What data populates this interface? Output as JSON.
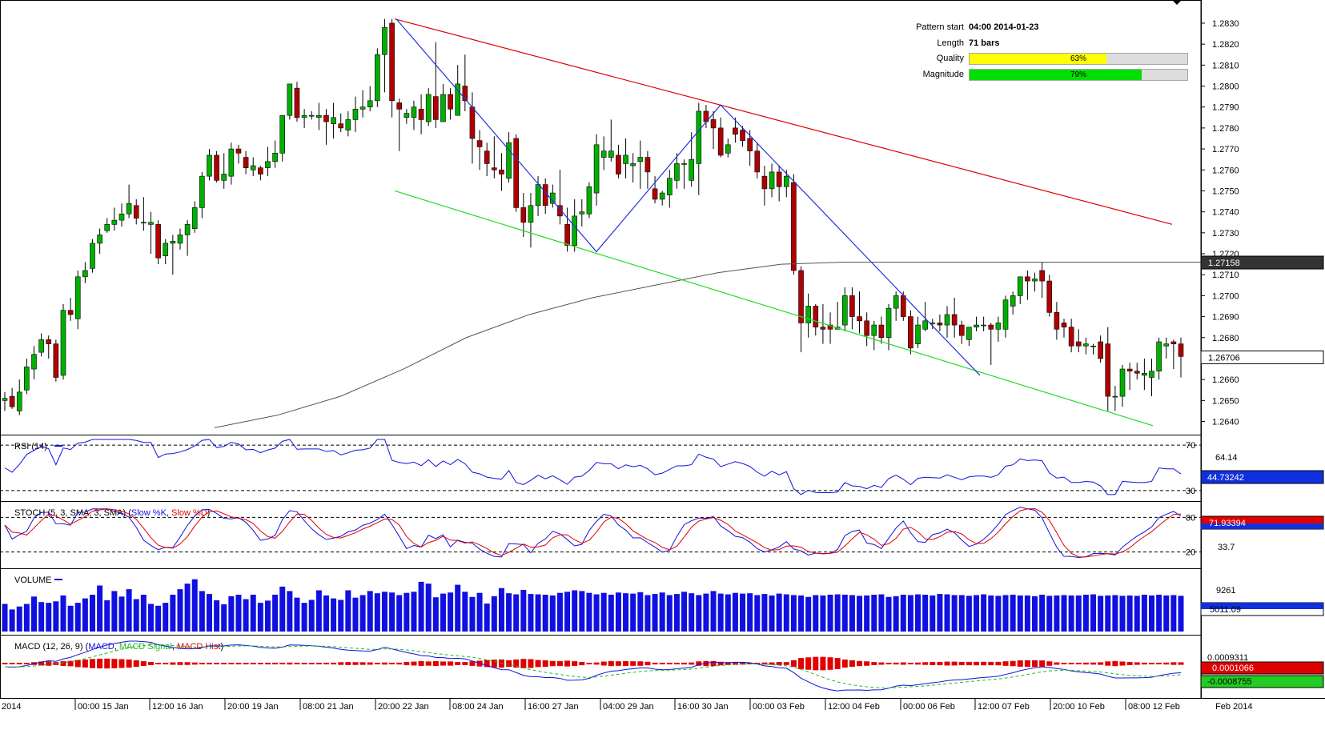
{
  "pattern_info": {
    "rows": [
      {
        "label": "Pattern start",
        "value": "04:00 2014-01-23"
      },
      {
        "label": "Length",
        "value": "71 bars"
      }
    ],
    "quality": {
      "label": "Quality",
      "percent": 63,
      "text": "63%",
      "color": "#ffff00"
    },
    "magnitude": {
      "label": "Magnitude",
      "percent": 79,
      "text": "79%",
      "color": "#00e000"
    }
  },
  "colors": {
    "up": "#00b000",
    "down": "#b00000",
    "resistance": "#e00000",
    "support": "#22dd22",
    "zigzag": "#2233dd",
    "ma": "#555555",
    "volume": "#1010e0"
  },
  "price_axis": {
    "ticks": [
      "1.2830",
      "1.2820",
      "1.2810",
      "1.2800",
      "1.2790",
      "1.2780",
      "1.2770",
      "1.2760",
      "1.2750",
      "1.2740",
      "1.2730",
      "1.2720",
      "1.2710",
      "1.2700",
      "1.2690",
      "1.2680",
      "1.2670",
      "1.2660",
      "1.2650",
      "1.2640"
    ],
    "badge_ma": "1.27158",
    "badge_last": "1.26706"
  },
  "x_axis": {
    "left_label": "2014",
    "right_label": "Feb 2014",
    "labels": [
      "00:00 15 Jan",
      "12:00 16 Jan",
      "20:00 19 Jan",
      "08:00 21 Jan",
      "20:00 22 Jan",
      "08:00 24 Jan",
      "16:00 27 Jan",
      "04:00 29 Jan",
      "16:00 30 Jan",
      "00:00 03 Feb",
      "12:00 04 Feb",
      "00:00 06 Feb",
      "12:00 07 Feb",
      "20:00 10 Feb",
      "08:00 12 Feb"
    ]
  },
  "rsi": {
    "title": "RSI (14)",
    "level_high": "70",
    "level_low": "30",
    "mid_label": "64.14",
    "badge": "44.73242"
  },
  "stoch": {
    "title_prefix": "STOCH (5, 3, SMA, 3, SMA)",
    "k_label": "Slow %K",
    "d_label": "Slow %D",
    "level_high": "80",
    "level_low": "20",
    "mid_label": "33.7",
    "badge": "71.93394"
  },
  "volume": {
    "title": "VOLUME",
    "tick": "9261",
    "badge": "5011.09"
  },
  "macd": {
    "title_prefix": "MACD (12, 26, 9)",
    "macd_label": "MACD",
    "signal_label": "MACD Signal",
    "hist_label": "MACD Hist",
    "tick": "0.0009311",
    "badge_hist": "0.0001066",
    "badge_macd": "-0.0008755"
  },
  "chart_data": {
    "type": "candlestick",
    "ylim": [
      1.2636,
      1.2838
    ],
    "ohlc": [
      [
        1.265,
        1.2654,
        1.2645,
        1.2651
      ],
      [
        1.2652,
        1.2656,
        1.2646,
        1.2647
      ],
      [
        1.2645,
        1.266,
        1.2643,
        1.2654
      ],
      [
        1.2655,
        1.267,
        1.2653,
        1.2666
      ],
      [
        1.2665,
        1.2676,
        1.266,
        1.2672
      ],
      [
        1.2673,
        1.2682,
        1.2671,
        1.2679
      ],
      [
        1.2679,
        1.2681,
        1.267,
        1.2677
      ],
      [
        1.2677,
        1.2679,
        1.2659,
        1.2661
      ],
      [
        1.2662,
        1.2696,
        1.266,
        1.2693
      ],
      [
        1.2693,
        1.2699,
        1.2688,
        1.2691
      ],
      [
        1.2689,
        1.2712,
        1.2684,
        1.2709
      ],
      [
        1.2709,
        1.2716,
        1.2706,
        1.2712
      ],
      [
        1.2713,
        1.2727,
        1.2711,
        1.2725
      ],
      [
        1.2725,
        1.2732,
        1.272,
        1.2729
      ],
      [
        1.2731,
        1.2737,
        1.273,
        1.2734
      ],
      [
        1.2734,
        1.2742,
        1.2731,
        1.2736
      ],
      [
        1.2736,
        1.2744,
        1.2733,
        1.2739
      ],
      [
        1.2739,
        1.2753,
        1.2737,
        1.2744
      ],
      [
        1.2743,
        1.2746,
        1.2734,
        1.2737
      ],
      [
        1.2735,
        1.2747,
        1.2731,
        1.2735
      ],
      [
        1.2734,
        1.274,
        1.272,
        1.2735
      ],
      [
        1.2734,
        1.2736,
        1.2715,
        1.2718
      ],
      [
        1.2719,
        1.2727,
        1.2715,
        1.2725
      ],
      [
        1.2725,
        1.2729,
        1.271,
        1.2726
      ],
      [
        1.2725,
        1.2732,
        1.2722,
        1.2729
      ],
      [
        1.2729,
        1.2736,
        1.2719,
        1.2734
      ],
      [
        1.2732,
        1.2745,
        1.273,
        1.2742
      ],
      [
        1.2742,
        1.2759,
        1.2737,
        1.2757
      ],
      [
        1.2757,
        1.277,
        1.2755,
        1.2767
      ],
      [
        1.2767,
        1.2769,
        1.2754,
        1.2755
      ],
      [
        1.2755,
        1.2768,
        1.2751,
        1.2758
      ],
      [
        1.2757,
        1.2773,
        1.2753,
        1.277
      ],
      [
        1.277,
        1.2772,
        1.2763,
        1.2768
      ],
      [
        1.2766,
        1.2769,
        1.2758,
        1.2761
      ],
      [
        1.276,
        1.2766,
        1.2757,
        1.2762
      ],
      [
        1.2761,
        1.2762,
        1.2755,
        1.2758
      ],
      [
        1.2761,
        1.2771,
        1.2757,
        1.2764
      ],
      [
        1.2764,
        1.2774,
        1.2761,
        1.2768
      ],
      [
        1.2768,
        1.2784,
        1.2764,
        1.2786
      ],
      [
        1.2786,
        1.2801,
        1.2784,
        1.2801
      ],
      [
        1.2799,
        1.2802,
        1.2783,
        1.2785
      ],
      [
        1.2785,
        1.2789,
        1.278,
        1.2786
      ],
      [
        1.2786,
        1.2788,
        1.2784,
        1.2786
      ],
      [
        1.2785,
        1.2792,
        1.2779,
        1.2786
      ],
      [
        1.2786,
        1.2789,
        1.2772,
        1.2783
      ],
      [
        1.2782,
        1.2792,
        1.2775,
        1.2785
      ],
      [
        1.2782,
        1.2787,
        1.2778,
        1.278
      ],
      [
        1.2779,
        1.2788,
        1.2776,
        1.2784
      ],
      [
        1.2784,
        1.2795,
        1.2778,
        1.2789
      ],
      [
        1.2789,
        1.2798,
        1.2785,
        1.279
      ],
      [
        1.279,
        1.28,
        1.2788,
        1.2793
      ],
      [
        1.2793,
        1.2818,
        1.279,
        1.2815
      ],
      [
        1.2815,
        1.2832,
        1.2797,
        1.2828
      ],
      [
        1.283,
        1.2832,
        1.2785,
        1.2793
      ],
      [
        1.2792,
        1.2794,
        1.2769,
        1.2789
      ],
      [
        1.2785,
        1.2789,
        1.2782,
        1.2787
      ],
      [
        1.2785,
        1.2793,
        1.2779,
        1.279
      ],
      [
        1.2789,
        1.2796,
        1.2777,
        1.2784
      ],
      [
        1.2783,
        1.2799,
        1.2781,
        1.2796
      ],
      [
        1.2795,
        1.2821,
        1.278,
        1.2784
      ],
      [
        1.2783,
        1.2801,
        1.2783,
        1.2796
      ],
      [
        1.2796,
        1.2799,
        1.2784,
        1.2789
      ],
      [
        1.2786,
        1.281,
        1.2786,
        1.2801
      ],
      [
        1.28,
        1.2815,
        1.2788,
        1.2793
      ],
      [
        1.279,
        1.2797,
        1.2763,
        1.2775
      ],
      [
        1.2774,
        1.2779,
        1.276,
        1.2771
      ],
      [
        1.2769,
        1.2773,
        1.2757,
        1.2763
      ],
      [
        1.2761,
        1.2776,
        1.2756,
        1.276
      ],
      [
        1.276,
        1.2768,
        1.275,
        1.2758
      ],
      [
        1.2756,
        1.2778,
        1.2754,
        1.2773
      ],
      [
        1.2775,
        1.2777,
        1.274,
        1.2742
      ],
      [
        1.2742,
        1.2749,
        1.2728,
        1.2735
      ],
      [
        1.2735,
        1.2749,
        1.2723,
        1.2743
      ],
      [
        1.2743,
        1.2757,
        1.2738,
        1.2753
      ],
      [
        1.2753,
        1.2756,
        1.2739,
        1.2743
      ],
      [
        1.2744,
        1.2753,
        1.2742,
        1.2749
      ],
      [
        1.2743,
        1.276,
        1.2734,
        1.2738
      ],
      [
        1.2734,
        1.2742,
        1.2721,
        1.2724
      ],
      [
        1.2724,
        1.2746,
        1.2721,
        1.2738
      ],
      [
        1.2739,
        1.2746,
        1.2733,
        1.274
      ],
      [
        1.2739,
        1.2754,
        1.2737,
        1.2752
      ],
      [
        1.2749,
        1.2777,
        1.2743,
        1.2772
      ],
      [
        1.2766,
        1.2776,
        1.276,
        1.2769
      ],
      [
        1.2766,
        1.2784,
        1.2764,
        1.2769
      ],
      [
        1.2767,
        1.2772,
        1.2756,
        1.2758
      ],
      [
        1.2763,
        1.2775,
        1.2756,
        1.2767
      ],
      [
        1.2762,
        1.2768,
        1.2754,
        1.2763
      ],
      [
        1.2764,
        1.2774,
        1.2751,
        1.2766
      ],
      [
        1.2766,
        1.2769,
        1.2751,
        1.2759
      ],
      [
        1.2751,
        1.2757,
        1.2744,
        1.2746
      ],
      [
        1.2746,
        1.275,
        1.2743,
        1.2749
      ],
      [
        1.2748,
        1.276,
        1.2742,
        1.2756
      ],
      [
        1.2755,
        1.2768,
        1.2751,
        1.2763
      ],
      [
        1.2763,
        1.2765,
        1.2751,
        1.2763
      ],
      [
        1.2755,
        1.2778,
        1.2752,
        1.2765
      ],
      [
        1.2763,
        1.2792,
        1.2748,
        1.2788
      ],
      [
        1.2788,
        1.2791,
        1.278,
        1.2783
      ],
      [
        1.2784,
        1.2788,
        1.277,
        1.278
      ],
      [
        1.278,
        1.2785,
        1.2766,
        1.2767
      ],
      [
        1.2768,
        1.2775,
        1.2766,
        1.2772
      ],
      [
        1.278,
        1.2785,
        1.2773,
        1.2777
      ],
      [
        1.2779,
        1.2781,
        1.2771,
        1.2774
      ],
      [
        1.2775,
        1.2779,
        1.2762,
        1.2769
      ],
      [
        1.2769,
        1.2773,
        1.2756,
        1.2759
      ],
      [
        1.2757,
        1.2762,
        1.2743,
        1.2751
      ],
      [
        1.2751,
        1.2763,
        1.2747,
        1.2759
      ],
      [
        1.2759,
        1.2762,
        1.2745,
        1.2752
      ],
      [
        1.2752,
        1.276,
        1.2747,
        1.2757
      ],
      [
        1.2754,
        1.2758,
        1.271,
        1.2712
      ],
      [
        1.2712,
        1.2714,
        1.2673,
        1.2687
      ],
      [
        1.2687,
        1.2701,
        1.268,
        1.2695
      ],
      [
        1.2695,
        1.2696,
        1.2681,
        1.2685
      ],
      [
        1.2685,
        1.2696,
        1.2677,
        1.2684
      ],
      [
        1.2686,
        1.2692,
        1.2677,
        1.2684
      ],
      [
        1.2684,
        1.2697,
        1.2684,
        1.2685
      ],
      [
        1.2686,
        1.2704,
        1.2683,
        1.27
      ],
      [
        1.27,
        1.2704,
        1.2684,
        1.269
      ],
      [
        1.269,
        1.2702,
        1.2682,
        1.2688
      ],
      [
        1.2688,
        1.2692,
        1.2676,
        1.2681
      ],
      [
        1.2681,
        1.2688,
        1.2674,
        1.2686
      ],
      [
        1.2686,
        1.269,
        1.2677,
        1.268
      ],
      [
        1.268,
        1.2696,
        1.2674,
        1.2694
      ],
      [
        1.2694,
        1.2702,
        1.2688,
        1.27
      ],
      [
        1.27,
        1.2702,
        1.2688,
        1.269
      ],
      [
        1.269,
        1.2693,
        1.2672,
        1.2675
      ],
      [
        1.2677,
        1.269,
        1.2675,
        1.2686
      ],
      [
        1.2684,
        1.2697,
        1.2683,
        1.2688
      ],
      [
        1.2687,
        1.2689,
        1.2684,
        1.2687
      ],
      [
        1.2687,
        1.2691,
        1.2683,
        1.2686
      ],
      [
        1.2686,
        1.2695,
        1.268,
        1.2691
      ],
      [
        1.2691,
        1.2699,
        1.268,
        1.2686
      ],
      [
        1.2686,
        1.2688,
        1.2677,
        1.2681
      ],
      [
        1.2679,
        1.2684,
        1.2676,
        1.2685
      ],
      [
        1.2685,
        1.269,
        1.2683,
        1.2686
      ],
      [
        1.2686,
        1.269,
        1.2683,
        1.2686
      ],
      [
        1.2686,
        1.2687,
        1.2667,
        1.2684
      ],
      [
        1.2684,
        1.269,
        1.2678,
        1.2687
      ],
      [
        1.2684,
        1.27,
        1.268,
        1.2698
      ],
      [
        1.2695,
        1.2702,
        1.2691,
        1.27
      ],
      [
        1.27,
        1.2707,
        1.2696,
        1.2709
      ],
      [
        1.2709,
        1.2712,
        1.2698,
        1.2707
      ],
      [
        1.2707,
        1.2711,
        1.2702,
        1.2708
      ],
      [
        1.2712,
        1.2716,
        1.2699,
        1.2707
      ],
      [
        1.2707,
        1.271,
        1.269,
        1.2692
      ],
      [
        1.2692,
        1.2697,
        1.2679,
        1.2684
      ],
      [
        1.2687,
        1.2689,
        1.268,
        1.2685
      ],
      [
        1.2685,
        1.2689,
        1.2673,
        1.2676
      ],
      [
        1.2678,
        1.2684,
        1.2673,
        1.2676
      ],
      [
        1.2676,
        1.268,
        1.2672,
        1.2677
      ],
      [
        1.2676,
        1.2677,
        1.2672,
        1.2676
      ],
      [
        1.2678,
        1.2681,
        1.2668,
        1.267
      ],
      [
        1.2677,
        1.2685,
        1.2645,
        1.2652
      ],
      [
        1.2652,
        1.2657,
        1.2645,
        1.2652
      ],
      [
        1.2652,
        1.2667,
        1.2647,
        1.2665
      ],
      [
        1.2665,
        1.2668,
        1.2655,
        1.2664
      ],
      [
        1.2664,
        1.2668,
        1.266,
        1.2663
      ],
      [
        1.2662,
        1.267,
        1.2655,
        1.2663
      ],
      [
        1.2661,
        1.267,
        1.2652,
        1.2664
      ],
      [
        1.2664,
        1.268,
        1.266,
        1.2678
      ],
      [
        1.2676,
        1.268,
        1.267,
        1.2677
      ],
      [
        1.2678,
        1.2679,
        1.2665,
        1.2677
      ],
      [
        1.2677,
        1.268,
        1.2661,
        1.2671
      ]
    ],
    "ma_200": [
      [
        0,
        1.2637
      ],
      [
        24,
        1.2643
      ],
      [
        48,
        1.2652
      ],
      [
        72,
        1.2665
      ],
      [
        96,
        1.268
      ],
      [
        120,
        1.2691
      ],
      [
        144,
        1.2699
      ],
      [
        168,
        1.2705
      ],
      [
        192,
        1.2711
      ],
      [
        216,
        1.2715
      ],
      [
        240,
        1.2716
      ],
      [
        264,
        1.2716
      ],
      [
        288,
        1.2716
      ],
      [
        320,
        1.2716
      ],
      [
        376,
        1.2716
      ]
    ],
    "resistance_line": [
      [
        1.2832,
        1.2734
      ]
    ],
    "support_line": [
      [
        1.275,
        1.2638
      ]
    ],
    "zigzag": [
      1.2832,
      1.2721,
      1.2791,
      1.2662
    ],
    "volume": [
      75,
      60,
      68,
      75,
      95,
      80,
      78,
      82,
      98,
      70,
      78,
      90,
      100,
      125,
      85,
      110,
      95,
      115,
      88,
      100,
      75,
      70,
      78,
      100,
      115,
      130,
      142,
      110,
      102,
      85,
      74,
      96,
      100,
      88,
      100,
      78,
      84,
      100,
      122,
      110,
      92,
      78,
      86,
      112,
      98,
      90,
      86,
      112,
      92,
      99,
      110,
      104,
      108,
      106,
      99,
      105,
      108,
      135,
      130,
      93,
      103,
      106,
      127,
      108,
      94,
      105,
      76,
      96,
      118,
      104,
      101,
      113,
      102,
      101,
      100,
      98,
      105,
      108,
      112,
      110,
      105,
      101,
      105,
      100,
      106,
      104,
      103,
      107,
      99,
      102,
      106,
      99,
      102,
      108,
      104,
      99,
      103,
      110,
      103,
      101,
      105,
      103,
      104,
      99,
      102,
      98,
      103,
      101,
      99,
      98,
      94,
      99,
      98,
      100,
      101,
      100,
      99,
      97,
      98,
      100,
      101,
      94,
      96,
      100,
      99,
      101,
      100,
      98,
      102,
      101,
      99,
      99,
      97,
      99,
      101,
      98,
      97,
      99,
      100,
      98,
      98,
      96,
      100,
      97,
      98,
      99,
      98,
      98,
      100,
      101,
      97,
      98,
      99,
      97,
      98,
      97,
      100,
      98,
      100,
      98,
      99,
      97
    ],
    "rsi_range": [
      25,
      75
    ],
    "stoch_range": [
      0,
      100
    ]
  }
}
